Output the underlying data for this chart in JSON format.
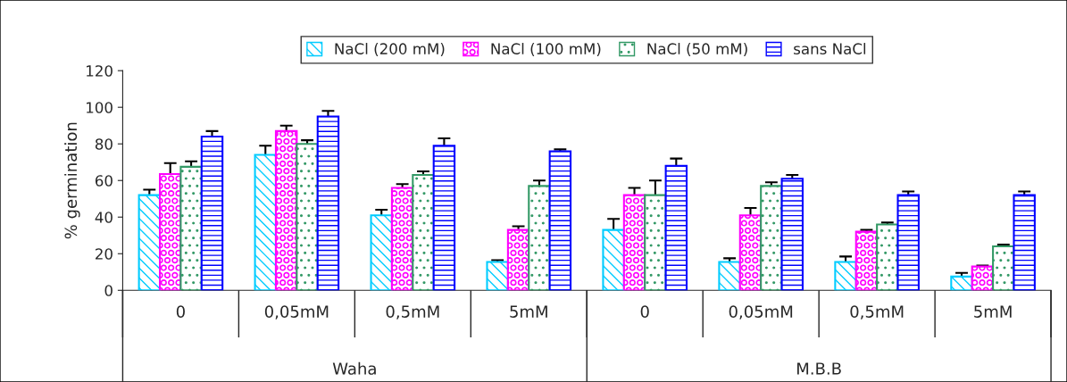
{
  "chart_data": {
    "type": "bar",
    "ylabel": "% germination",
    "categories": [
      "0",
      "0,05mM",
      "0,5mM",
      "5mM",
      "0",
      "0,05mM",
      "0,5mM",
      "5mM"
    ],
    "annotations": [
      "Waha",
      "M.B.B"
    ],
    "series": [
      {
        "name": "NaCl (200 mM)",
        "color": "#00ccff",
        "values": [
          52,
          74,
          41,
          15.5,
          33,
          15.5,
          15.5,
          7.5
        ],
        "errors": [
          3,
          5,
          3,
          1,
          6,
          2,
          3,
          2
        ]
      },
      {
        "name": "NaCl (100 mM)",
        "color": "#ff00ff",
        "values": [
          63.5,
          87,
          56,
          33,
          52,
          41,
          32,
          13
        ],
        "errors": [
          6,
          3,
          2,
          2,
          4,
          4,
          1,
          0.5
        ]
      },
      {
        "name": "NaCl (50 mM)",
        "color": "#339966",
        "values": [
          67.5,
          80,
          63,
          57,
          52,
          57,
          36,
          24
        ],
        "errors": [
          3,
          2,
          2,
          3,
          8,
          2,
          1,
          1
        ]
      },
      {
        "name": "sans NaCl",
        "color": "#0000ff",
        "values": [
          84,
          95,
          79,
          76,
          68,
          61,
          52,
          52
        ],
        "errors": [
          3,
          3,
          4,
          1,
          4,
          2,
          2,
          2
        ]
      }
    ],
    "ylim": [
      0,
      120
    ],
    "yticks": [
      0,
      20,
      40,
      60,
      80,
      100,
      120
    ],
    "grid": false,
    "legend": "top"
  }
}
